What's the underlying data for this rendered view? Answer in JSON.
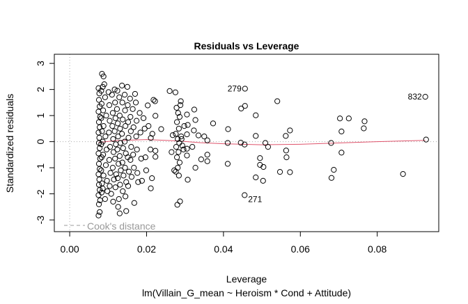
{
  "chart_data": {
    "type": "scatter",
    "title": "Residuals vs Leverage",
    "xlabel": "Leverage",
    "subtitle": "lm(Villain_G_mean ~ Heroism * Cond + Attitude)",
    "ylabel": "Standardized residuals",
    "xlim": [
      -0.004,
      0.096
    ],
    "ylim": [
      -3.45,
      3.35
    ],
    "xticks": [
      0.0,
      0.02,
      0.04,
      0.06,
      0.08
    ],
    "xtick_labels": [
      "0.00",
      "0.02",
      "0.04",
      "0.06",
      "0.08"
    ],
    "yticks": [
      -3,
      -2,
      -1,
      0,
      1,
      2,
      3
    ],
    "ytick_labels": [
      "-3",
      "-2",
      "-1",
      "0",
      "1",
      "2",
      "3"
    ],
    "legend": {
      "label": "Cook's distance",
      "position": "bottom-left",
      "color": "#999999"
    },
    "smooth_color": "#DF536B",
    "labeled_points": [
      {
        "label": "279",
        "x": 0.0456,
        "y": 2.03,
        "side": "left"
      },
      {
        "label": "832",
        "x": 0.0925,
        "y": 1.72,
        "side": "left"
      },
      {
        "label": "271",
        "x": 0.0455,
        "y": -2.05,
        "side": "right"
      }
    ],
    "smooth": [
      [
        0.0075,
        -0.03
      ],
      [
        0.012,
        0.04
      ],
      [
        0.02,
        0.08
      ],
      [
        0.028,
        0.03
      ],
      [
        0.034,
        -0.04
      ],
      [
        0.04,
        -0.08
      ],
      [
        0.05,
        -0.12
      ],
      [
        0.06,
        -0.1
      ],
      [
        0.07,
        -0.05
      ],
      [
        0.08,
        0.0
      ],
      [
        0.0925,
        0.05
      ]
    ],
    "points": [
      [
        0.054,
        1.55
      ],
      [
        0.0446,
        1.27
      ],
      [
        0.0456,
        1.37
      ],
      [
        0.0484,
        1.01
      ],
      [
        0.0373,
        0.7
      ],
      [
        0.0412,
        0.48
      ],
      [
        0.0484,
        0.22
      ],
      [
        0.0562,
        0.22
      ],
      [
        0.0573,
        0.43
      ],
      [
        0.0703,
        0.89
      ],
      [
        0.0726,
        0.89
      ],
      [
        0.0767,
        0.78
      ],
      [
        0.0765,
        0.51
      ],
      [
        0.0707,
        0.39
      ],
      [
        0.0927,
        0.08
      ],
      [
        0.068,
        -0.05
      ],
      [
        0.0411,
        -0.05
      ],
      [
        0.0445,
        -0.04
      ],
      [
        0.0455,
        -0.11
      ],
      [
        0.0509,
        -0.05
      ],
      [
        0.0516,
        -0.2
      ],
      [
        0.0563,
        -0.34
      ],
      [
        0.0564,
        -0.6
      ],
      [
        0.0707,
        -0.42
      ],
      [
        0.0495,
        -0.63
      ],
      [
        0.0495,
        -0.89
      ],
      [
        0.0504,
        -0.97
      ],
      [
        0.0411,
        -0.85
      ],
      [
        0.0547,
        -1.16
      ],
      [
        0.0573,
        -1.17
      ],
      [
        0.0687,
        -1.08
      ],
      [
        0.0681,
        -1.39
      ],
      [
        0.0867,
        -1.24
      ],
      [
        0.0484,
        -1.37
      ],
      [
        0.0503,
        -1.5
      ],
      [
        0.0358,
        -0.5
      ],
      [
        0.0358,
        -0.75
      ],
      [
        0.0342,
        -0.68
      ],
      [
        0.0327,
        -1.0
      ],
      [
        0.0358,
        0.05
      ],
      [
        0.035,
        0.2
      ],
      [
        0.0335,
        0.24
      ],
      [
        0.0327,
        0.83
      ],
      [
        0.0324,
        1.23
      ],
      [
        0.0323,
        0.43
      ],
      [
        0.0305,
        1.04
      ],
      [
        0.0307,
        0.64
      ],
      [
        0.0305,
        0.28
      ],
      [
        0.0319,
        -0.2
      ],
      [
        0.0305,
        -0.27
      ],
      [
        0.0305,
        -0.53
      ],
      [
        0.0307,
        -1.46
      ],
      [
        0.0289,
        1.55
      ],
      [
        0.026,
        1.94
      ],
      [
        0.0275,
        1.89
      ],
      [
        0.0287,
        -2.29
      ],
      [
        0.028,
        -2.42
      ],
      [
        0.0456,
        2.03
      ],
      [
        0.0925,
        1.72
      ],
      [
        0.0455,
        -2.05
      ],
      [
        0.0278,
        1.3
      ],
      [
        0.0282,
        1.1
      ],
      [
        0.0286,
        0.95
      ],
      [
        0.0279,
        0.75
      ],
      [
        0.0284,
        0.5
      ],
      [
        0.0276,
        0.3
      ],
      [
        0.0281,
        0.1
      ],
      [
        0.0285,
        -0.05
      ],
      [
        0.0277,
        -0.2
      ],
      [
        0.0283,
        -0.4
      ],
      [
        0.0279,
        -0.6
      ],
      [
        0.0286,
        -0.8
      ],
      [
        0.0281,
        -1.0
      ],
      [
        0.0276,
        -1.15
      ],
      [
        0.0284,
        -1.3
      ],
      [
        0.0272,
        -1.1
      ],
      [
        0.0268,
        0.25
      ],
      [
        0.0265,
        -0.4
      ],
      [
        0.0291,
        0.1
      ],
      [
        0.0293,
        -0.15
      ],
      [
        0.0288,
        1.4
      ],
      [
        0.029,
        0.2
      ],
      [
        0.0296,
        -0.3
      ],
      [
        0.0298,
        0.6
      ],
      [
        0.0084,
        2.6
      ],
      [
        0.0088,
        2.5
      ],
      [
        0.017,
        1.83
      ],
      [
        0.0218,
        1.6
      ],
      [
        0.0203,
        1.39
      ],
      [
        0.0223,
        0.99
      ],
      [
        0.0238,
        0.48
      ],
      [
        0.0211,
        0.14
      ],
      [
        0.0223,
        -0.35
      ],
      [
        0.0223,
        -0.58
      ],
      [
        0.0211,
        -1.79
      ],
      [
        0.0168,
        -2.35
      ],
      [
        0.0147,
        -2.66
      ],
      [
        0.013,
        -2.75
      ],
      [
        0.0075,
        -2.83
      ],
      [
        0.0078,
        -2.7
      ],
      [
        0.0092,
        -2.2
      ],
      [
        0.0222,
        1.55
      ],
      [
        0.0075,
        2.05
      ],
      [
        0.0077,
        1.85
      ],
      [
        0.0076,
        1.6
      ],
      [
        0.0078,
        1.35
      ],
      [
        0.0075,
        1.15
      ],
      [
        0.0079,
        0.95
      ],
      [
        0.0076,
        0.75
      ],
      [
        0.0078,
        0.55
      ],
      [
        0.0075,
        0.35
      ],
      [
        0.0077,
        0.15
      ],
      [
        0.0076,
        -0.05
      ],
      [
        0.0078,
        -0.25
      ],
      [
        0.0075,
        -0.45
      ],
      [
        0.0079,
        -0.65
      ],
      [
        0.0076,
        -0.85
      ],
      [
        0.0078,
        -1.05
      ],
      [
        0.0075,
        -1.25
      ],
      [
        0.0077,
        -1.45
      ],
      [
        0.0076,
        -1.65
      ],
      [
        0.0078,
        -1.85
      ],
      [
        0.0075,
        -2.05
      ],
      [
        0.0079,
        -2.25
      ],
      [
        0.0076,
        -2.4
      ],
      [
        0.0082,
        1.95
      ],
      [
        0.0083,
        1.45
      ],
      [
        0.0082,
        0.9
      ],
      [
        0.0084,
        0.4
      ],
      [
        0.0082,
        -0.1
      ],
      [
        0.0083,
        -0.6
      ],
      [
        0.0082,
        -1.1
      ],
      [
        0.0084,
        -1.6
      ],
      [
        0.0083,
        -1.95
      ],
      [
        0.0086,
        2.1
      ],
      [
        0.0087,
        1.2
      ],
      [
        0.0088,
        0.6
      ],
      [
        0.0086,
        0.0
      ],
      [
        0.0087,
        -0.5
      ],
      [
        0.0088,
        -1.3
      ],
      [
        0.0086,
        -1.8
      ],
      [
        0.009,
        2.2
      ],
      [
        0.0092,
        1.7
      ],
      [
        0.0095,
        1.0
      ],
      [
        0.0093,
        0.2
      ],
      [
        0.0096,
        -0.3
      ],
      [
        0.0094,
        -0.9
      ],
      [
        0.0097,
        -1.5
      ],
      [
        0.0098,
        -1.9
      ],
      [
        0.0101,
        1.9
      ],
      [
        0.0103,
        1.4
      ],
      [
        0.0104,
        0.8
      ],
      [
        0.0102,
        0.35
      ],
      [
        0.0105,
        -0.2
      ],
      [
        0.0103,
        -0.7
      ],
      [
        0.0106,
        -1.2
      ],
      [
        0.0104,
        -1.7
      ],
      [
        0.0108,
        -2.0
      ],
      [
        0.011,
        1.8
      ],
      [
        0.0112,
        1.1
      ],
      [
        0.0111,
        0.6
      ],
      [
        0.0113,
        0.1
      ],
      [
        0.0114,
        -0.4
      ],
      [
        0.0112,
        -1.0
      ],
      [
        0.0115,
        -1.45
      ],
      [
        0.0113,
        -2.3
      ],
      [
        0.0117,
        2.0
      ],
      [
        0.0118,
        1.5
      ],
      [
        0.0119,
        0.9
      ],
      [
        0.0117,
        0.4
      ],
      [
        0.012,
        -0.1
      ],
      [
        0.0118,
        -0.65
      ],
      [
        0.0121,
        -1.25
      ],
      [
        0.0119,
        -1.75
      ],
      [
        0.0124,
        1.95
      ],
      [
        0.0123,
        1.25
      ],
      [
        0.0125,
        0.7
      ],
      [
        0.0126,
        0.2
      ],
      [
        0.0124,
        -0.3
      ],
      [
        0.0127,
        -0.85
      ],
      [
        0.0125,
        -1.4
      ],
      [
        0.0126,
        -2.5
      ],
      [
        0.0129,
        1.7
      ],
      [
        0.013,
        1.0
      ],
      [
        0.0131,
        0.5
      ],
      [
        0.0132,
        -0.05
      ],
      [
        0.013,
        -0.55
      ],
      [
        0.0133,
        -1.1
      ],
      [
        0.0131,
        -1.65
      ],
      [
        0.0128,
        -2.2
      ],
      [
        0.0136,
        2.15
      ],
      [
        0.0137,
        1.5
      ],
      [
        0.0138,
        0.85
      ],
      [
        0.0136,
        0.3
      ],
      [
        0.0139,
        -0.25
      ],
      [
        0.0137,
        -0.8
      ],
      [
        0.014,
        -1.3
      ],
      [
        0.0138,
        -1.9
      ],
      [
        0.0143,
        1.8
      ],
      [
        0.0144,
        1.2
      ],
      [
        0.0145,
        0.6
      ],
      [
        0.0143,
        0.0
      ],
      [
        0.0146,
        -0.45
      ],
      [
        0.0144,
        -1.0
      ],
      [
        0.0147,
        -1.55
      ],
      [
        0.0145,
        -2.1
      ],
      [
        0.015,
        2.1
      ],
      [
        0.0151,
        1.4
      ],
      [
        0.0152,
        0.75
      ],
      [
        0.0153,
        0.15
      ],
      [
        0.0151,
        -0.6
      ],
      [
        0.0154,
        -1.15
      ],
      [
        0.0152,
        -1.7
      ],
      [
        0.0157,
        1.65
      ],
      [
        0.0158,
        0.95
      ],
      [
        0.0159,
        0.4
      ],
      [
        0.016,
        -0.2
      ],
      [
        0.0158,
        -0.7
      ],
      [
        0.0161,
        -1.35
      ],
      [
        0.0164,
        1.25
      ],
      [
        0.0166,
        0.55
      ],
      [
        0.0165,
        -0.5
      ],
      [
        0.0167,
        -1.0
      ],
      [
        0.0172,
        1.5
      ],
      [
        0.0174,
        0.8
      ],
      [
        0.0173,
        0.2
      ],
      [
        0.0175,
        -0.3
      ],
      [
        0.0176,
        -1.2
      ],
      [
        0.0178,
        -1.55
      ],
      [
        0.0182,
        1.1
      ],
      [
        0.0184,
        0.35
      ],
      [
        0.0186,
        -0.65
      ],
      [
        0.0188,
        -1.5
      ],
      [
        0.0192,
        0.9
      ],
      [
        0.0195,
        0.5
      ],
      [
        0.0197,
        -0.6
      ],
      [
        0.0199,
        -1.1
      ],
      [
        0.0205,
        0.6
      ],
      [
        0.021,
        -0.3
      ],
      [
        0.0215,
        0.3
      ],
      [
        0.0214,
        -1.4
      ]
    ]
  }
}
